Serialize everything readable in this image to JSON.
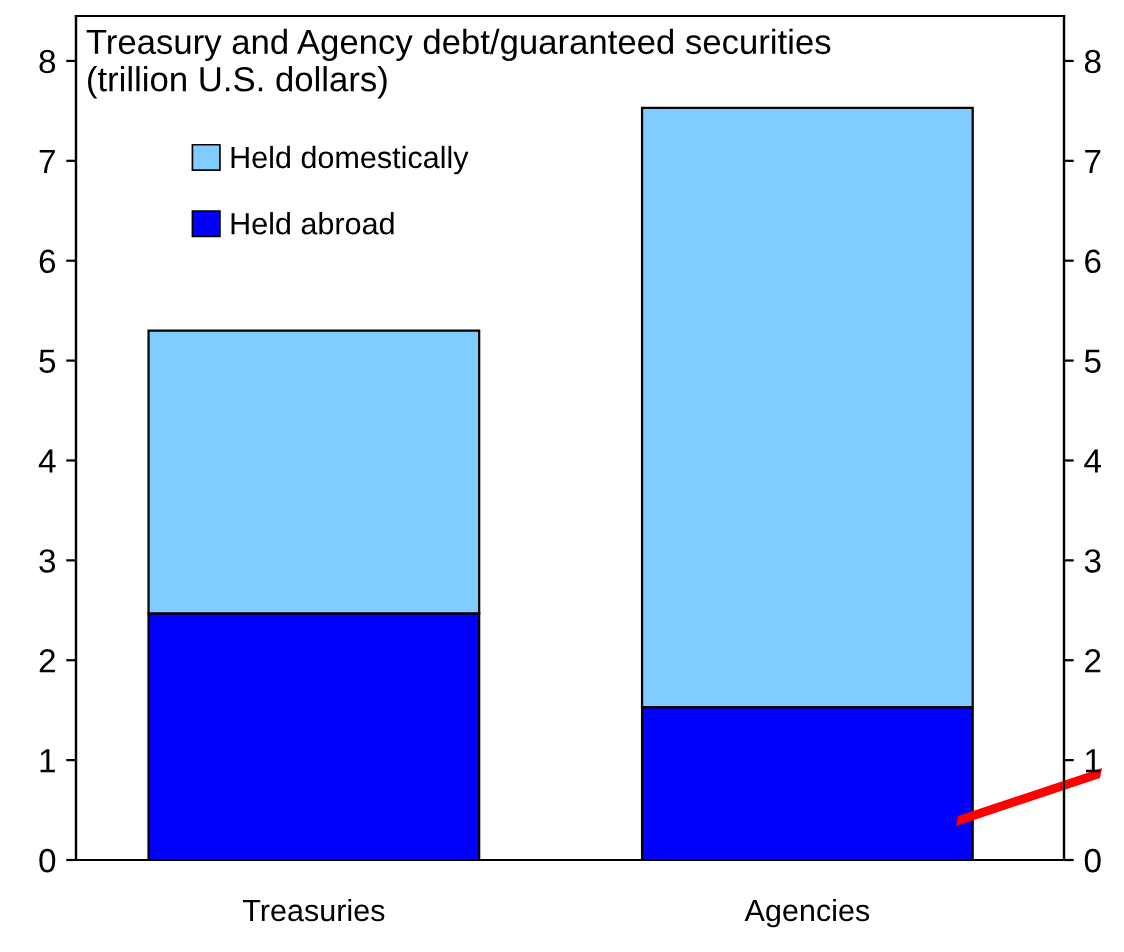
{
  "chart_data": {
    "type": "bar",
    "stacked": true,
    "title": "Treasury and Agency debt/guaranteed securities\n(trillion U.S. dollars)",
    "categories": [
      "Treasuries",
      "Agencies"
    ],
    "series": [
      {
        "name": "Held abroad",
        "color": "#0000ff",
        "values": [
          2.47,
          1.53
        ]
      },
      {
        "name": "Held domestically",
        "color": "#80ccff",
        "values": [
          2.83,
          6.0
        ]
      }
    ],
    "ylim": [
      0,
      8.45
    ],
    "yticks": [
      0,
      1,
      2,
      3,
      4,
      5,
      6,
      7,
      8
    ],
    "y2lim": [
      0,
      8.45
    ],
    "y2ticks": [
      0,
      1,
      2,
      3,
      4,
      5,
      6,
      7,
      8
    ],
    "grid": false,
    "legend": "top left"
  }
}
